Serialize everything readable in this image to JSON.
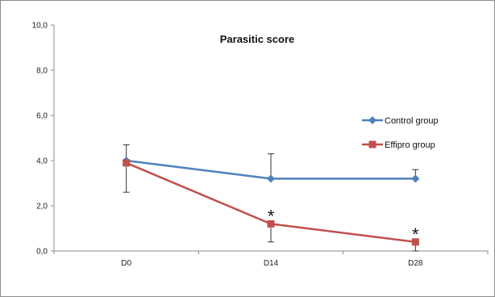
{
  "chart_data": {
    "type": "line",
    "title": "Parasitic score",
    "xlabel": "",
    "ylabel": "",
    "categories": [
      "D0",
      "D14",
      "D28"
    ],
    "ylim": [
      0,
      10
    ],
    "yticks": [
      "0,0",
      "2,0",
      "4,0",
      "6,0",
      "8,0",
      "10,0"
    ],
    "ytick_values": [
      0,
      2,
      4,
      6,
      8,
      10
    ],
    "grid": false,
    "legend": "right",
    "series": [
      {
        "name": "Control group",
        "values": [
          4.0,
          3.2,
          3.2
        ],
        "error_plus": [
          0.7,
          1.1,
          0.4
        ],
        "error_minus": [
          0,
          0,
          0
        ],
        "color": "#4f81bd",
        "marker": "diamond"
      },
      {
        "name": "Effipro group",
        "values": [
          3.9,
          1.2,
          0.4
        ],
        "error_plus": [
          0,
          0,
          0
        ],
        "error_minus": [
          1.3,
          0.8,
          0.4
        ],
        "color": "#c0504d",
        "marker": "square"
      }
    ],
    "annotations": [
      {
        "text": "*",
        "category": "D14",
        "value": 1.2
      },
      {
        "text": "*",
        "category": "D28",
        "value": 0.4
      }
    ]
  }
}
